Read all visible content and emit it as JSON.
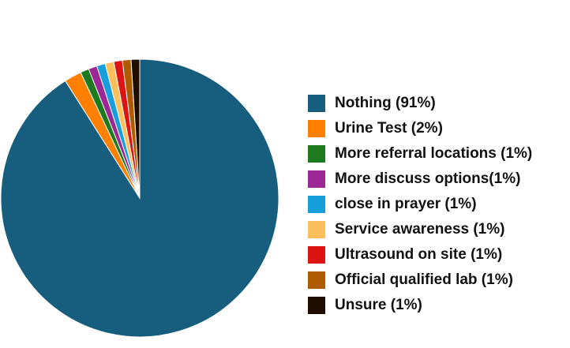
{
  "chart_data": {
    "type": "pie",
    "categories": [
      "Nothing (91%)",
      "Urine  Test (2%)",
      "More referral locations (1%)",
      "More discuss  options(1%)",
      "close in prayer (1%)",
      "Service awareness (1%)",
      "Ultrasound on site (1%)",
      "Official qualified lab (1%)",
      "Unsure (1%)"
    ],
    "values": [
      91,
      2,
      1,
      1,
      1,
      1,
      1,
      1,
      1
    ],
    "colors": [
      "#175e7e",
      "#ff8000",
      "#1e7a1e",
      "#9c2896",
      "#179fdc",
      "#fdbf5a",
      "#dc1414",
      "#b05a00",
      "#1f0d00"
    ],
    "legend": "right"
  }
}
